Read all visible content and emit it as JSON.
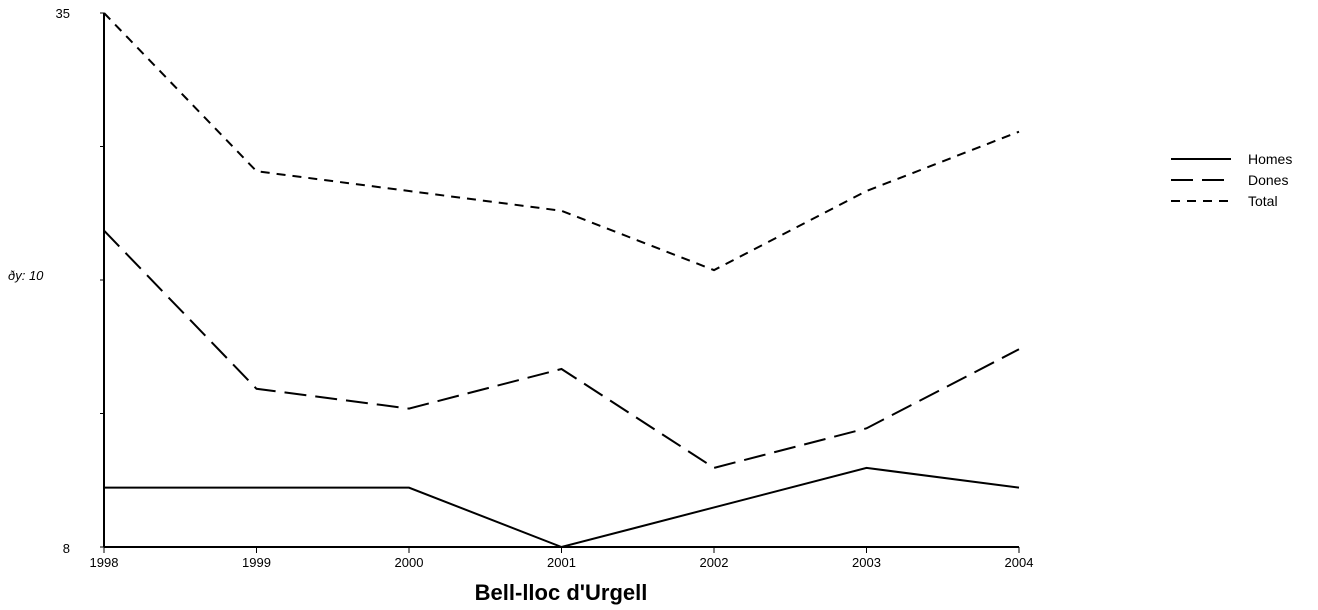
{
  "chart_data": {
    "type": "line",
    "title": "Bell-lloc d'Urgell",
    "xlabel": "",
    "ylabel": "ðy: 10",
    "categories": [
      "1998",
      "1999",
      "2000",
      "2001",
      "2002",
      "2003",
      "2004"
    ],
    "ylim": [
      8,
      35
    ],
    "ytick_labels": [
      "35",
      "8"
    ],
    "grid": false,
    "legend_position": "right",
    "series": [
      {
        "name": "Homes",
        "dash": "solid",
        "values": [
          11,
          11,
          11,
          8,
          10,
          12,
          11
        ]
      },
      {
        "name": "Dones",
        "dash": "long-dash",
        "values": [
          24,
          16,
          15,
          17,
          12,
          14,
          18
        ]
      },
      {
        "name": "Total",
        "dash": "short-dash",
        "values": [
          35,
          27,
          26,
          25,
          22,
          26,
          29
        ]
      }
    ]
  }
}
